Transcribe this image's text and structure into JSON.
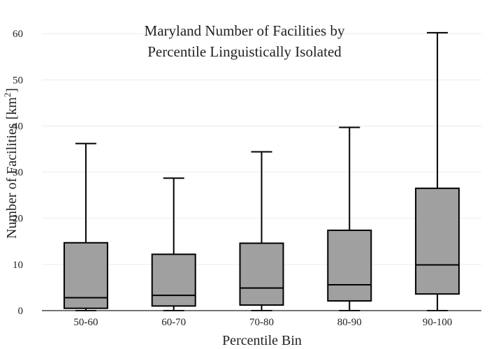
{
  "chart_data": {
    "type": "box",
    "title_lines": [
      "Maryland Number of Facilities by",
      "Percentile Linguistically Isolated"
    ],
    "xlabel": "Percentile Bin",
    "ylabel_main": "Number of Facilities  [km",
    "ylabel_sup": "2",
    "ylabel_end": "]",
    "ylim": [
      0,
      62
    ],
    "yticks": [
      0,
      10,
      20,
      30,
      40,
      50,
      60
    ],
    "grid": true,
    "categories": [
      "50-60",
      "60-70",
      "70-80",
      "80-90",
      "90-100"
    ],
    "boxes": [
      {
        "category": "50-60",
        "min": 0,
        "q1": 0.5,
        "median": 2.8,
        "q3": 14.7,
        "max": 36.2
      },
      {
        "category": "60-70",
        "min": 0,
        "q1": 1.0,
        "median": 3.3,
        "q3": 12.2,
        "max": 28.7
      },
      {
        "category": "70-80",
        "min": 0,
        "q1": 1.2,
        "median": 4.9,
        "q3": 14.6,
        "max": 34.4
      },
      {
        "category": "80-90",
        "min": 0,
        "q1": 2.1,
        "median": 5.6,
        "q3": 17.4,
        "max": 39.7
      },
      {
        "category": "90-100",
        "min": 0,
        "q1": 3.6,
        "median": 9.9,
        "q3": 26.5,
        "max": 60.2
      }
    ],
    "box_fill": "#a0a0a0",
    "box_stroke": "#000000"
  }
}
